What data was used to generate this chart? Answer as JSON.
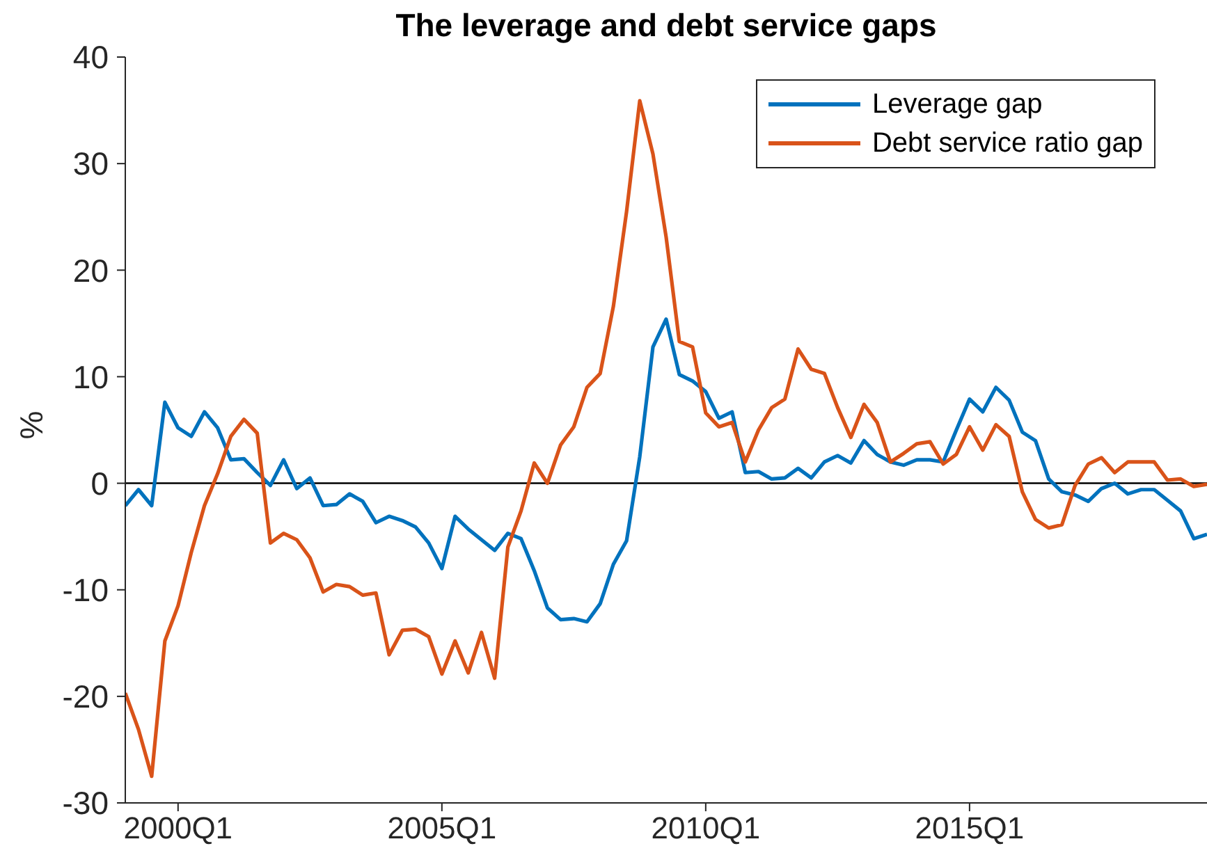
{
  "chart_data": {
    "type": "line",
    "title": "The leverage and debt service gaps",
    "ylabel": "%",
    "categories": [
      null,
      null,
      null,
      null,
      "2000Q1",
      null,
      null,
      null,
      null,
      null,
      null,
      null,
      null,
      null,
      null,
      null,
      null,
      null,
      null,
      null,
      null,
      null,
      null,
      null,
      "2005Q1",
      null,
      null,
      null,
      null,
      null,
      null,
      null,
      null,
      null,
      null,
      null,
      null,
      null,
      null,
      null,
      null,
      null,
      null,
      null,
      "2010Q1",
      null,
      null,
      null,
      null,
      null,
      null,
      null,
      null,
      null,
      null,
      null,
      null,
      null,
      null,
      null,
      null,
      null,
      null,
      null,
      "2015Q1",
      null,
      null,
      null,
      null,
      null,
      null,
      null,
      null,
      null,
      null,
      null,
      null,
      null,
      null,
      null,
      null,
      null,
      null
    ],
    "series": [
      {
        "name": "Leverage gap",
        "color": "#0072bd",
        "values": [
          -2.1,
          -0.6,
          -2.1,
          7.6,
          5.2,
          4.4,
          6.7,
          5.2,
          2.2,
          2.3,
          1.0,
          -0.2,
          2.2,
          -0.5,
          0.5,
          -2.1,
          -2.0,
          -1.0,
          -1.7,
          -3.7,
          -3.1,
          -3.5,
          -4.1,
          -5.6,
          -8.0,
          -3.1,
          -4.3,
          -5.3,
          -6.3,
          -4.7,
          -5.2,
          -8.2,
          -11.7,
          -12.8,
          -12.7,
          -13.0,
          -11.3,
          -7.6,
          -5.4,
          2.5,
          12.8,
          15.4,
          10.2,
          9.6,
          8.6,
          6.1,
          6.7,
          1.0,
          1.1,
          0.4,
          0.5,
          1.4,
          0.5,
          2.0,
          2.6,
          1.9,
          4.0,
          2.7,
          2.0,
          1.7,
          2.2,
          2.2,
          2.0,
          5.0,
          7.9,
          6.7,
          9.0,
          7.8,
          4.8,
          4.0,
          0.4,
          -0.8,
          -1.1,
          -1.7,
          -0.5,
          0.0,
          -1.0,
          -0.6,
          -0.6,
          -1.6,
          -2.6,
          -5.2,
          -4.8
        ]
      },
      {
        "name": "Debt service ratio gap",
        "color": "#d95319",
        "values": [
          -19.7,
          -23.1,
          -27.5,
          -14.8,
          -11.5,
          -6.5,
          -2.1,
          0.9,
          4.4,
          6.0,
          4.7,
          -5.6,
          -4.7,
          -5.3,
          -7.0,
          -10.2,
          -9.5,
          -9.7,
          -10.5,
          -10.3,
          -16.1,
          -13.8,
          -13.7,
          -14.4,
          -17.9,
          -14.8,
          -17.8,
          -14.0,
          -18.3,
          -6.0,
          -2.6,
          1.9,
          0.0,
          3.6,
          5.3,
          9.0,
          10.3,
          16.6,
          25.5,
          35.9,
          30.9,
          23.1,
          13.3,
          12.8,
          6.6,
          5.3,
          5.7,
          2.0,
          5.0,
          7.1,
          7.9,
          12.6,
          10.7,
          10.3,
          7.1,
          4.3,
          7.4,
          5.7,
          2.0,
          2.8,
          3.7,
          3.9,
          1.8,
          2.7,
          5.3,
          3.1,
          5.5,
          4.4,
          -0.8,
          -3.4,
          -4.2,
          -3.9,
          -0.2,
          1.8,
          2.4,
          1.0,
          2.0,
          2.0,
          2.0,
          0.3,
          0.4,
          -0.3,
          -0.1
        ]
      }
    ],
    "ylim": [
      -30,
      40
    ],
    "yticks": [
      -30,
      -20,
      -10,
      0,
      10,
      20,
      30,
      40
    ],
    "ref_lines": [
      {
        "axis": "y",
        "value": 0,
        "color": "#000000"
      }
    ],
    "legend": "top right",
    "grid": false,
    "marker": "none",
    "line_style": "solid"
  }
}
